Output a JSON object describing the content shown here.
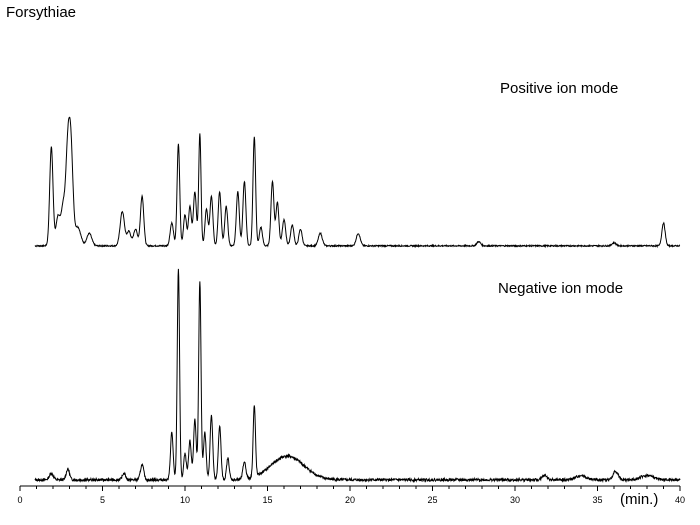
{
  "chart_data": [
    {
      "type": "line",
      "title": "Forsythiae",
      "annotation": "Positive ion mode",
      "xlabel": "(min.)",
      "xlim": [
        0,
        40
      ],
      "x_ticks": [
        0,
        5,
        10,
        15,
        20,
        25,
        30,
        35,
        40
      ],
      "baseline": 0.04,
      "peaks": [
        {
          "x": 1.9,
          "y": 0.95,
          "w": 0.1
        },
        {
          "x": 2.3,
          "y": 0.28,
          "w": 0.12
        },
        {
          "x": 2.6,
          "y": 0.35,
          "w": 0.12
        },
        {
          "x": 2.9,
          "y": 0.92,
          "w": 0.13
        },
        {
          "x": 3.1,
          "y": 0.78,
          "w": 0.12
        },
        {
          "x": 3.5,
          "y": 0.18,
          "w": 0.18
        },
        {
          "x": 4.2,
          "y": 0.12,
          "w": 0.15
        },
        {
          "x": 6.2,
          "y": 0.33,
          "w": 0.13
        },
        {
          "x": 6.6,
          "y": 0.14,
          "w": 0.12
        },
        {
          "x": 7.0,
          "y": 0.16,
          "w": 0.12
        },
        {
          "x": 7.4,
          "y": 0.48,
          "w": 0.1
        },
        {
          "x": 9.2,
          "y": 0.22,
          "w": 0.1
        },
        {
          "x": 9.6,
          "y": 0.98,
          "w": 0.08
        },
        {
          "x": 10.0,
          "y": 0.3,
          "w": 0.09
        },
        {
          "x": 10.3,
          "y": 0.38,
          "w": 0.09
        },
        {
          "x": 10.6,
          "y": 0.52,
          "w": 0.09
        },
        {
          "x": 10.9,
          "y": 1.08,
          "w": 0.07
        },
        {
          "x": 11.3,
          "y": 0.35,
          "w": 0.09
        },
        {
          "x": 11.6,
          "y": 0.48,
          "w": 0.09
        },
        {
          "x": 12.1,
          "y": 0.52,
          "w": 0.09
        },
        {
          "x": 12.5,
          "y": 0.38,
          "w": 0.09
        },
        {
          "x": 13.2,
          "y": 0.52,
          "w": 0.09
        },
        {
          "x": 13.6,
          "y": 0.62,
          "w": 0.09
        },
        {
          "x": 14.2,
          "y": 1.05,
          "w": 0.08
        },
        {
          "x": 14.6,
          "y": 0.18,
          "w": 0.09
        },
        {
          "x": 15.3,
          "y": 0.62,
          "w": 0.09
        },
        {
          "x": 15.6,
          "y": 0.42,
          "w": 0.09
        },
        {
          "x": 16.0,
          "y": 0.25,
          "w": 0.1
        },
        {
          "x": 16.5,
          "y": 0.2,
          "w": 0.1
        },
        {
          "x": 17.0,
          "y": 0.16,
          "w": 0.1
        },
        {
          "x": 18.2,
          "y": 0.12,
          "w": 0.12
        },
        {
          "x": 20.5,
          "y": 0.12,
          "w": 0.12
        },
        {
          "x": 27.8,
          "y": 0.04,
          "w": 0.12
        },
        {
          "x": 36.0,
          "y": 0.03,
          "w": 0.12
        },
        {
          "x": 39.0,
          "y": 0.22,
          "w": 0.1
        }
      ]
    },
    {
      "type": "line",
      "annotation": "Negative ion mode",
      "xlabel": "(min.)",
      "xlim": [
        0,
        40
      ],
      "x_ticks": [
        0,
        5,
        10,
        15,
        20,
        25,
        30,
        35,
        40
      ],
      "baseline": 0.01,
      "peaks": [
        {
          "x": 1.9,
          "y": 0.03,
          "w": 0.12
        },
        {
          "x": 2.9,
          "y": 0.05,
          "w": 0.1
        },
        {
          "x": 6.3,
          "y": 0.03,
          "w": 0.1
        },
        {
          "x": 7.4,
          "y": 0.07,
          "w": 0.1
        },
        {
          "x": 9.2,
          "y": 0.22,
          "w": 0.08
        },
        {
          "x": 9.6,
          "y": 0.98,
          "w": 0.07
        },
        {
          "x": 10.0,
          "y": 0.12,
          "w": 0.08
        },
        {
          "x": 10.3,
          "y": 0.18,
          "w": 0.08
        },
        {
          "x": 10.6,
          "y": 0.28,
          "w": 0.08
        },
        {
          "x": 10.9,
          "y": 0.92,
          "w": 0.07
        },
        {
          "x": 11.2,
          "y": 0.22,
          "w": 0.08
        },
        {
          "x": 11.6,
          "y": 0.3,
          "w": 0.08
        },
        {
          "x": 12.1,
          "y": 0.25,
          "w": 0.08
        },
        {
          "x": 12.6,
          "y": 0.1,
          "w": 0.08
        },
        {
          "x": 13.6,
          "y": 0.08,
          "w": 0.09
        },
        {
          "x": 14.2,
          "y": 0.33,
          "w": 0.07
        },
        {
          "x": 16.2,
          "y": 0.11,
          "w": 1.0
        },
        {
          "x": 31.8,
          "y": 0.02,
          "w": 0.15
        },
        {
          "x": 34.0,
          "y": 0.02,
          "w": 0.3
        },
        {
          "x": 36.1,
          "y": 0.04,
          "w": 0.15
        },
        {
          "x": 38.0,
          "y": 0.02,
          "w": 0.4
        }
      ]
    }
  ]
}
